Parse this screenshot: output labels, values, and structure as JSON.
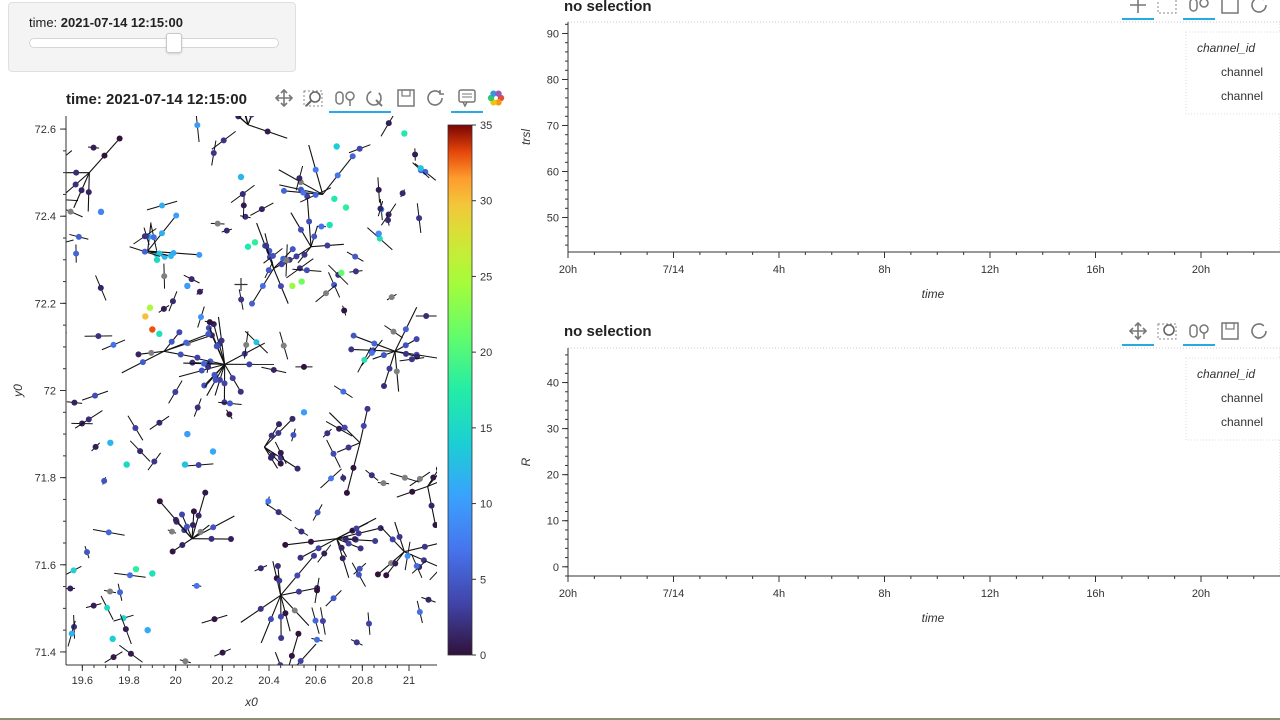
{
  "widget": {
    "label_prefix": "time:",
    "label_value": "2021-07-14 12:15:00",
    "slider_fraction": 0.58
  },
  "map": {
    "title": "time: 2021-07-14 12:15:00",
    "tools": [
      "pan-icon",
      "box-zoom-icon",
      "wheel-zoom-icon",
      "reset-zoom-icon",
      "save-icon",
      "refresh-icon",
      "hover-icon",
      "bokeh-logo-icon"
    ]
  },
  "panel1": {
    "title": "no selection",
    "legend_title": "channel_id",
    "legend_items": [
      "channel",
      "channel"
    ]
  },
  "panel2": {
    "title": "no selection",
    "legend_title": "channel_id",
    "legend_items": [
      "channel",
      "channel"
    ]
  },
  "chart_data": [
    {
      "type": "scatter",
      "title": "time: 2021-07-14 12:15:00",
      "xlabel": "x0",
      "ylabel": "y0",
      "xlim": [
        19.53,
        21.12
      ],
      "ylim": [
        71.37,
        72.63
      ],
      "xticks": [
        "19.6",
        "19.8",
        "20",
        "20.2",
        "20.4",
        "20.6",
        "20.8",
        "21"
      ],
      "xtick_values": [
        19.6,
        19.8,
        20.0,
        20.2,
        20.4,
        20.6,
        20.8,
        21.0
      ],
      "yticks": [
        "71.4",
        "71.6",
        "71.8",
        "72",
        "72.2",
        "72.4",
        "72.6"
      ],
      "ytick_values": [
        71.4,
        71.6,
        71.8,
        72.0,
        72.2,
        72.4,
        72.6
      ],
      "colorbar": {
        "min": 0,
        "max": 35,
        "ticks": [
          "0",
          "5",
          "10",
          "15",
          "20",
          "25",
          "30",
          "35"
        ],
        "tick_values": [
          0,
          5,
          10,
          15,
          20,
          25,
          30,
          35
        ]
      },
      "hubs": [
        {
          "x": 20.21,
          "y": 72.06,
          "n": 16,
          "c": 4
        },
        {
          "x": 20.07,
          "y": 71.66,
          "n": 9,
          "c": 3
        },
        {
          "x": 20.45,
          "y": 71.53,
          "n": 9,
          "c": 2
        },
        {
          "x": 20.94,
          "y": 72.09,
          "n": 9,
          "c": 4
        },
        {
          "x": 20.69,
          "y": 71.66,
          "n": 10,
          "c": 2
        },
        {
          "x": 20.58,
          "y": 72.33,
          "n": 6,
          "c": 3
        },
        {
          "x": 20.42,
          "y": 72.28,
          "n": 7,
          "c": 5
        },
        {
          "x": 20.31,
          "y": 72.61,
          "n": 7,
          "c": 1
        },
        {
          "x": 19.95,
          "y": 72.09,
          "n": 6,
          "c": 4
        },
        {
          "x": 20.98,
          "y": 71.63,
          "n": 6,
          "c": 2
        },
        {
          "x": 19.88,
          "y": 72.32,
          "n": 5,
          "c": 12
        },
        {
          "x": 20.47,
          "y": 71.34,
          "n": 6,
          "c": 2
        },
        {
          "x": 19.63,
          "y": 72.5,
          "n": 5,
          "c": 1
        },
        {
          "x": 20.38,
          "y": 71.87,
          "n": 5,
          "c": 3
        },
        {
          "x": 20.79,
          "y": 71.88,
          "n": 4,
          "c": 2
        },
        {
          "x": 20.63,
          "y": 72.45,
          "n": 5,
          "c": 6
        },
        {
          "x": 21.08,
          "y": 71.78,
          "n": 5,
          "c": 1
        }
      ],
      "singles": [
        {
          "x": 19.87,
          "y": 72.17,
          "c": 30
        },
        {
          "x": 19.9,
          "y": 72.14,
          "c": 33
        },
        {
          "x": 19.93,
          "y": 72.13,
          "c": 16
        },
        {
          "x": 19.89,
          "y": 72.19,
          "c": 25
        },
        {
          "x": 20.54,
          "y": 72.25,
          "c": 22
        },
        {
          "x": 20.71,
          "y": 72.27,
          "c": 21
        },
        {
          "x": 20.5,
          "y": 72.24,
          "c": 24
        },
        {
          "x": 20.31,
          "y": 72.33,
          "c": 17
        },
        {
          "x": 20.34,
          "y": 72.34,
          "c": 18
        },
        {
          "x": 20.68,
          "y": 72.44,
          "c": 17
        },
        {
          "x": 20.73,
          "y": 72.42,
          "c": 18
        },
        {
          "x": 20.66,
          "y": 72.38,
          "c": 16
        },
        {
          "x": 20.98,
          "y": 72.59,
          "c": 17
        },
        {
          "x": 21.05,
          "y": 72.51,
          "c": 13
        },
        {
          "x": 19.73,
          "y": 71.43,
          "c": 14
        },
        {
          "x": 19.83,
          "y": 71.59,
          "c": 18
        },
        {
          "x": 19.9,
          "y": 71.58,
          "c": 16
        },
        {
          "x": 20.05,
          "y": 71.9,
          "c": 10
        },
        {
          "x": 20.04,
          "y": 71.83,
          "c": 13
        },
        {
          "x": 19.72,
          "y": 71.88,
          "c": 12
        },
        {
          "x": 20.28,
          "y": 72.49,
          "c": 12
        },
        {
          "x": 20.05,
          "y": 72.24,
          "c": 10
        },
        {
          "x": 20.69,
          "y": 72.56,
          "c": 14
        },
        {
          "x": 19.68,
          "y": 72.41,
          "c": 8
        },
        {
          "x": 19.92,
          "y": 72.3,
          "c": 15
        },
        {
          "x": 20.87,
          "y": 72.36,
          "c": 9
        },
        {
          "x": 19.88,
          "y": 71.45,
          "c": 11
        },
        {
          "x": 20.55,
          "y": 71.95,
          "c": 10
        },
        {
          "x": 20.16,
          "y": 71.86,
          "c": 11
        },
        {
          "x": 19.79,
          "y": 71.83,
          "c": 15
        }
      ]
    },
    {
      "type": "line",
      "title": "no selection",
      "xlabel": "time",
      "ylabel": "trsl",
      "xticks": [
        "20h",
        "7/14",
        "4h",
        "8h",
        "12h",
        "16h",
        "20h"
      ],
      "yticks": [
        "50",
        "60",
        "70",
        "80",
        "90"
      ],
      "ytick_values": [
        50,
        60,
        70,
        80,
        90
      ],
      "ylim": [
        42.5,
        92.5
      ],
      "series": []
    },
    {
      "type": "line",
      "title": "no selection",
      "xlabel": "time",
      "ylabel": "R",
      "xticks": [
        "20h",
        "7/14",
        "4h",
        "8h",
        "12h",
        "16h",
        "20h"
      ],
      "yticks": [
        "0",
        "10",
        "20",
        "30",
        "40"
      ],
      "ytick_values": [
        0,
        10,
        20,
        30,
        40
      ],
      "ylim": [
        -2,
        47.5
      ],
      "series": []
    }
  ]
}
